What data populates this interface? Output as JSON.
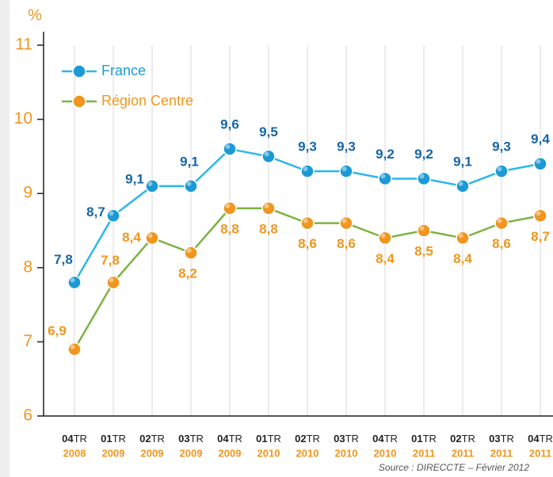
{
  "chart_data": {
    "type": "line",
    "y_axis_label": "%",
    "categories": [
      {
        "quarter": "04",
        "suffix": "TR",
        "year": "2008"
      },
      {
        "quarter": "01",
        "suffix": "TR",
        "year": "2009"
      },
      {
        "quarter": "02",
        "suffix": "TR",
        "year": "2009"
      },
      {
        "quarter": "03",
        "suffix": "TR",
        "year": "2009"
      },
      {
        "quarter": "04",
        "suffix": "TR",
        "year": "2009"
      },
      {
        "quarter": "01",
        "suffix": "TR",
        "year": "2010"
      },
      {
        "quarter": "02",
        "suffix": "TR",
        "year": "2010"
      },
      {
        "quarter": "03",
        "suffix": "TR",
        "year": "2010"
      },
      {
        "quarter": "04",
        "suffix": "TR",
        "year": "2010"
      },
      {
        "quarter": "01",
        "suffix": "TR",
        "year": "2011"
      },
      {
        "quarter": "02",
        "suffix": "TR",
        "year": "2011"
      },
      {
        "quarter": "03",
        "suffix": "TR",
        "year": "2011"
      },
      {
        "quarter": "04",
        "suffix": "TR",
        "year": "2011"
      }
    ],
    "series": [
      {
        "name": "France",
        "color": "#1b9ad6",
        "line_color": "#2bb7ea",
        "label_color": "#1565a8",
        "values": [
          7.8,
          8.7,
          9.1,
          9.1,
          9.6,
          9.5,
          9.3,
          9.3,
          9.2,
          9.2,
          9.1,
          9.3,
          9.4
        ],
        "value_labels": [
          "7,8",
          "8,7",
          "9,1",
          "9,1",
          "9,6",
          "9,5",
          "9,3",
          "9,3",
          "9,2",
          "9,2",
          "9,1",
          "9,3",
          "9,4"
        ]
      },
      {
        "name": "Région Centre",
        "color": "#f0961e",
        "line_color": "#7cb342",
        "label_color": "#f0961e",
        "values": [
          6.9,
          7.8,
          8.4,
          8.2,
          8.8,
          8.8,
          8.6,
          8.6,
          8.4,
          8.5,
          8.4,
          8.6,
          8.7
        ],
        "value_labels": [
          "6,9",
          "7,8",
          "8,4",
          "8,2",
          "8,8",
          "8,8",
          "8,6",
          "8,6",
          "8,4",
          "8,5",
          "8,4",
          "8,6",
          "8,7"
        ]
      }
    ],
    "ylim": [
      6,
      11
    ],
    "yticks": [
      6,
      7,
      8,
      9,
      10,
      11
    ],
    "grid": true,
    "legend": "top-left",
    "source": "Source : DIRECCTE – Février 2012"
  }
}
